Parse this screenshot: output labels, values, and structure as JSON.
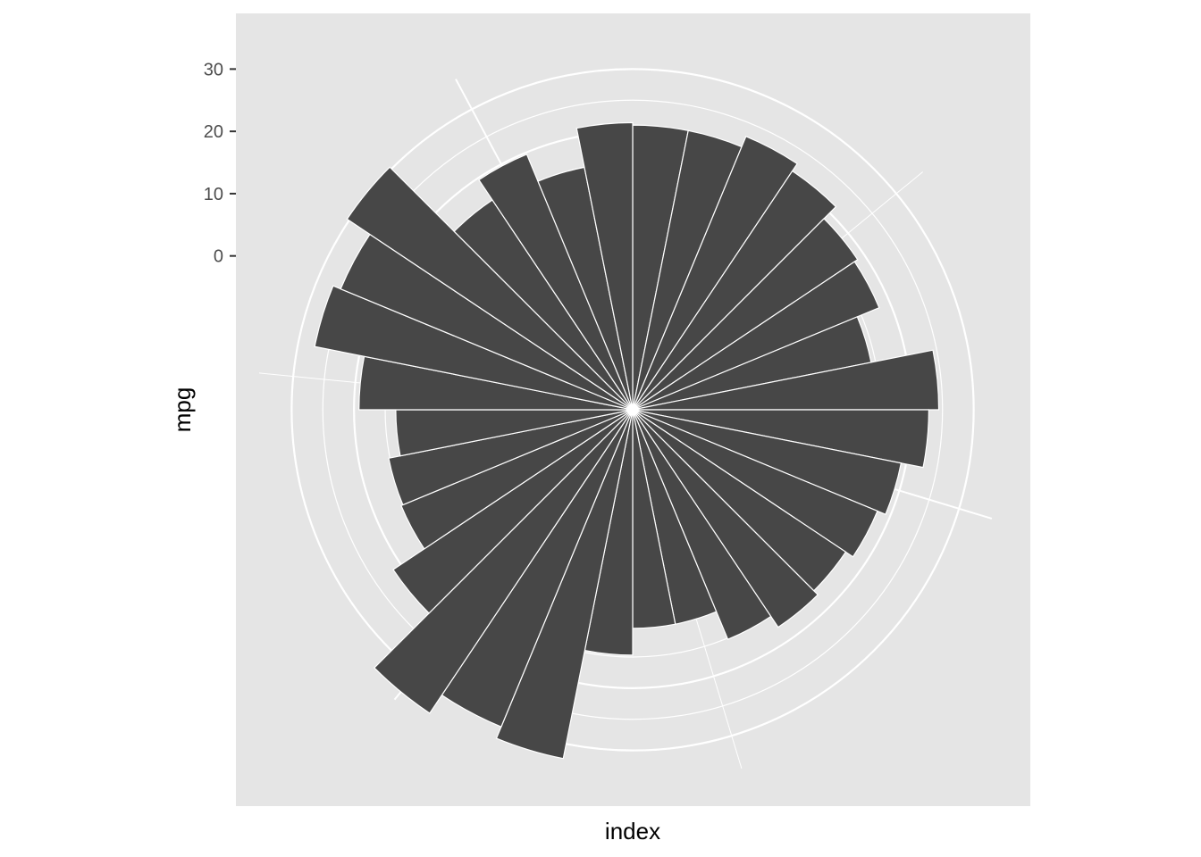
{
  "chart_data": {
    "type": "bar",
    "coord": "polar",
    "xlabel": "index",
    "ylabel": "mpg",
    "y_ticks": [
      0,
      10,
      20,
      30
    ],
    "y_tick_labels": [
      "0",
      "10",
      "20",
      "30"
    ],
    "ylim": [
      -24.7,
      35.5
    ],
    "x": [
      1,
      2,
      3,
      4,
      5,
      6,
      7,
      8,
      9,
      10,
      11,
      12,
      13,
      14,
      15,
      16,
      17,
      18,
      19,
      20,
      21,
      22,
      23,
      24,
      25,
      26,
      27,
      28,
      29,
      30,
      31,
      32
    ],
    "values": [
      21.0,
      21.0,
      22.8,
      21.4,
      18.7,
      18.1,
      14.3,
      24.4,
      22.8,
      19.2,
      17.8,
      16.4,
      17.3,
      15.2,
      10.4,
      10.4,
      14.7,
      32.4,
      30.4,
      33.9,
      21.5,
      15.5,
      15.2,
      13.3,
      19.2,
      27.3,
      26.0,
      30.4,
      15.8,
      19.7,
      15.0,
      21.4
    ],
    "grid": true,
    "bar_color": "#474747",
    "panel_color": "#e5e5e5",
    "grid_color": "#ffffff"
  }
}
